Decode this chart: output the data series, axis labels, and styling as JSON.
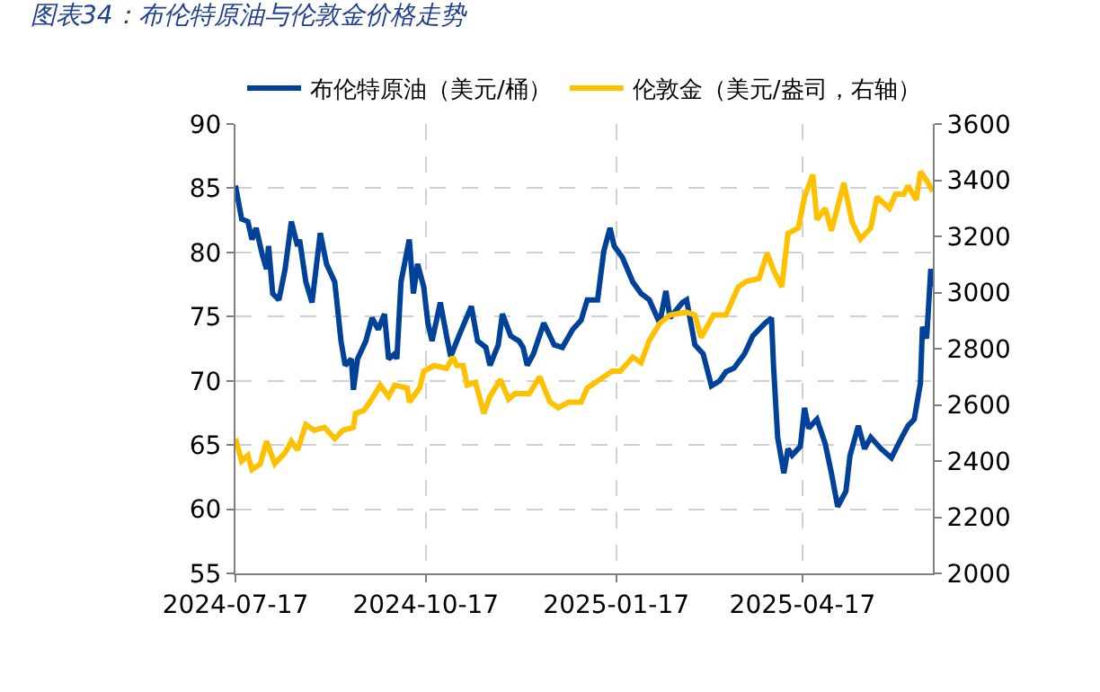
{
  "chart_data": {
    "type": "line",
    "title": "图表34：布伦特原油与伦敦金价格走势",
    "x": [
      "2024-07-17",
      "2024-07-20",
      "2024-07-23",
      "2024-07-25",
      "2024-07-27",
      "2024-07-30",
      "2024-08-01",
      "2024-08-02",
      "2024-08-04",
      "2024-08-07",
      "2024-08-10",
      "2024-08-13",
      "2024-08-16",
      "2024-08-17",
      "2024-08-20",
      "2024-08-23",
      "2024-08-27",
      "2024-08-30",
      "2024-09-03",
      "2024-09-06",
      "2024-09-08",
      "2024-09-11",
      "2024-09-12",
      "2024-09-14",
      "2024-09-18",
      "2024-09-21",
      "2024-09-24",
      "2024-09-27",
      "2024-09-29",
      "2024-10-02",
      "2024-10-03",
      "2024-10-05",
      "2024-10-09",
      "2024-10-11",
      "2024-10-13",
      "2024-10-16",
      "2024-10-18",
      "2024-10-20",
      "2024-10-24",
      "2024-10-27",
      "2024-10-29",
      "2024-11-02",
      "2024-11-08",
      "2024-11-11",
      "2024-11-15",
      "2024-11-17",
      "2024-11-21",
      "2024-11-23",
      "2024-11-27",
      "2024-12-01",
      "2024-12-03",
      "2024-12-05",
      "2024-12-08",
      "2024-12-13",
      "2024-12-18",
      "2024-12-22",
      "2024-12-27",
      "2024-12-31",
      "2025-01-03",
      "2025-01-08",
      "2025-01-11",
      "2025-01-14",
      "2025-01-16",
      "2025-01-20",
      "2025-01-25",
      "2025-01-29",
      "2025-02-02",
      "2025-02-07",
      "2025-02-10",
      "2025-02-12",
      "2025-02-18",
      "2025-02-20",
      "2025-02-24",
      "2025-02-28",
      "2025-03-04",
      "2025-03-08",
      "2025-03-11",
      "2025-03-15",
      "2025-03-20",
      "2025-03-24",
      "2025-03-30",
      "2025-04-02",
      "2025-04-03",
      "2025-04-05",
      "2025-04-08",
      "2025-04-10",
      "2025-04-12",
      "2025-04-16",
      "2025-04-18",
      "2025-04-20",
      "2025-04-24",
      "2025-04-28",
      "2025-05-01",
      "2025-05-04",
      "2025-05-08",
      "2025-05-10",
      "2025-05-14",
      "2025-05-17",
      "2025-05-20",
      "2025-05-25",
      "2025-05-30",
      "2025-06-04",
      "2025-06-07",
      "2025-06-10",
      "2025-06-13",
      "2025-06-14",
      "2025-06-16",
      "2025-06-18",
      "2025-06-19"
    ],
    "series": [
      {
        "name": "布伦特原油（美元/桶）",
        "color": "#00429a",
        "values": [
          85.2,
          82.6,
          82.4,
          81.0,
          81.9,
          79.8,
          78.7,
          80.5,
          76.8,
          76.3,
          78.7,
          82.4,
          80.5,
          81.0,
          77.7,
          76.1,
          81.5,
          79.1,
          77.7,
          73.1,
          71.2,
          71.7,
          69.3,
          71.7,
          73.1,
          74.9,
          74.0,
          75.2,
          71.7,
          72.1,
          71.7,
          77.7,
          81.0,
          76.8,
          79.1,
          77.3,
          74.5,
          73.1,
          76.1,
          73.5,
          71.9,
          73.5,
          75.8,
          73.1,
          72.6,
          71.2,
          72.8,
          75.2,
          73.5,
          73.1,
          72.6,
          71.2,
          72.1,
          74.5,
          72.8,
          72.6,
          74.0,
          74.7,
          76.3,
          76.3,
          80.1,
          81.9,
          80.5,
          79.6,
          77.7,
          76.8,
          76.3,
          74.5,
          77.0,
          74.9,
          76.1,
          76.3,
          72.8,
          72.1,
          69.6,
          70.0,
          70.7,
          71.0,
          72.1,
          73.5,
          74.5,
          74.9,
          71.2,
          65.6,
          62.8,
          64.7,
          64.2,
          64.9,
          67.9,
          66.3,
          67.0,
          65.1,
          62.8,
          60.2,
          61.4,
          64.2,
          66.5,
          64.7,
          65.6,
          64.7,
          64.0,
          65.6,
          66.5,
          67.0,
          69.8,
          74.2,
          73.3,
          78.7,
          77.3
        ]
      },
      {
        "name": "伦敦金（美元/盎司，右轴）",
        "color": "#ffc000",
        "axis": "y2",
        "x": [
          "2024-07-17",
          "2024-07-20",
          "2024-07-23",
          "2024-07-25",
          "2024-07-29",
          "2024-08-01",
          "2024-08-05",
          "2024-08-10",
          "2024-08-13",
          "2024-08-16",
          "2024-08-20",
          "2024-08-24",
          "2024-08-29",
          "2024-09-03",
          "2024-09-07",
          "2024-09-12",
          "2024-09-13",
          "2024-09-17",
          "2024-09-20",
          "2024-09-25",
          "2024-09-29",
          "2024-10-02",
          "2024-10-08",
          "2024-10-09",
          "2024-10-14",
          "2024-10-16",
          "2024-10-21",
          "2024-10-27",
          "2024-10-30",
          "2024-11-01",
          "2024-11-04",
          "2024-11-06",
          "2024-11-10",
          "2024-11-14",
          "2024-11-17",
          "2024-11-22",
          "2024-11-26",
          "2024-11-29",
          "2024-12-06",
          "2024-12-11",
          "2024-12-16",
          "2024-12-20",
          "2024-12-25",
          "2024-12-31",
          "2025-01-03",
          "2025-01-09",
          "2025-01-15",
          "2025-01-19",
          "2025-01-25",
          "2025-01-29",
          "2025-02-02",
          "2025-02-07",
          "2025-02-12",
          "2025-02-20",
          "2025-02-24",
          "2025-02-27",
          "2025-03-05",
          "2025-03-11",
          "2025-03-17",
          "2025-03-21",
          "2025-03-27",
          "2025-03-31",
          "2025-04-03",
          "2025-04-07",
          "2025-04-10",
          "2025-04-15",
          "2025-04-18",
          "2025-04-22",
          "2025-04-24",
          "2025-04-28",
          "2025-05-01",
          "2025-05-07",
          "2025-05-11",
          "2025-05-15",
          "2025-05-20",
          "2025-05-23",
          "2025-05-29",
          "2025-06-01",
          "2025-06-05",
          "2025-06-07",
          "2025-06-11",
          "2025-06-13",
          "2025-06-16",
          "2025-06-19"
        ],
        "values": [
          2480,
          2400,
          2420,
          2370,
          2390,
          2470,
          2390,
          2430,
          2470,
          2440,
          2530,
          2510,
          2520,
          2480,
          2510,
          2520,
          2570,
          2580,
          2610,
          2670,
          2630,
          2670,
          2660,
          2610,
          2660,
          2720,
          2740,
          2730,
          2770,
          2740,
          2740,
          2670,
          2680,
          2570,
          2630,
          2690,
          2620,
          2640,
          2640,
          2700,
          2610,
          2590,
          2610,
          2610,
          2660,
          2690,
          2720,
          2720,
          2770,
          2750,
          2830,
          2890,
          2920,
          2930,
          2920,
          2840,
          2920,
          2920,
          3020,
          3040,
          3050,
          3140,
          3080,
          3020,
          3210,
          3230,
          3340,
          3420,
          3260,
          3300,
          3220,
          3390,
          3250,
          3190,
          3230,
          3340,
          3300,
          3350,
          3350,
          3380,
          3330,
          3430,
          3400,
          3360
        ]
      }
    ],
    "xlim": [
      "2024-07-17",
      "2025-06-19"
    ],
    "xticks": [
      "2024-07-17",
      "2024-10-17",
      "2025-01-17",
      "2025-04-17"
    ],
    "ylim": [
      55,
      90
    ],
    "yticks": [
      55,
      60,
      65,
      70,
      75,
      80,
      85,
      90
    ],
    "y2lim": [
      2000,
      3600
    ],
    "y2ticks": [
      2000,
      2200,
      2400,
      2600,
      2800,
      3000,
      3200,
      3400,
      3600
    ],
    "grid": true,
    "legend": "top",
    "marker": "none",
    "line_style": "solid"
  }
}
